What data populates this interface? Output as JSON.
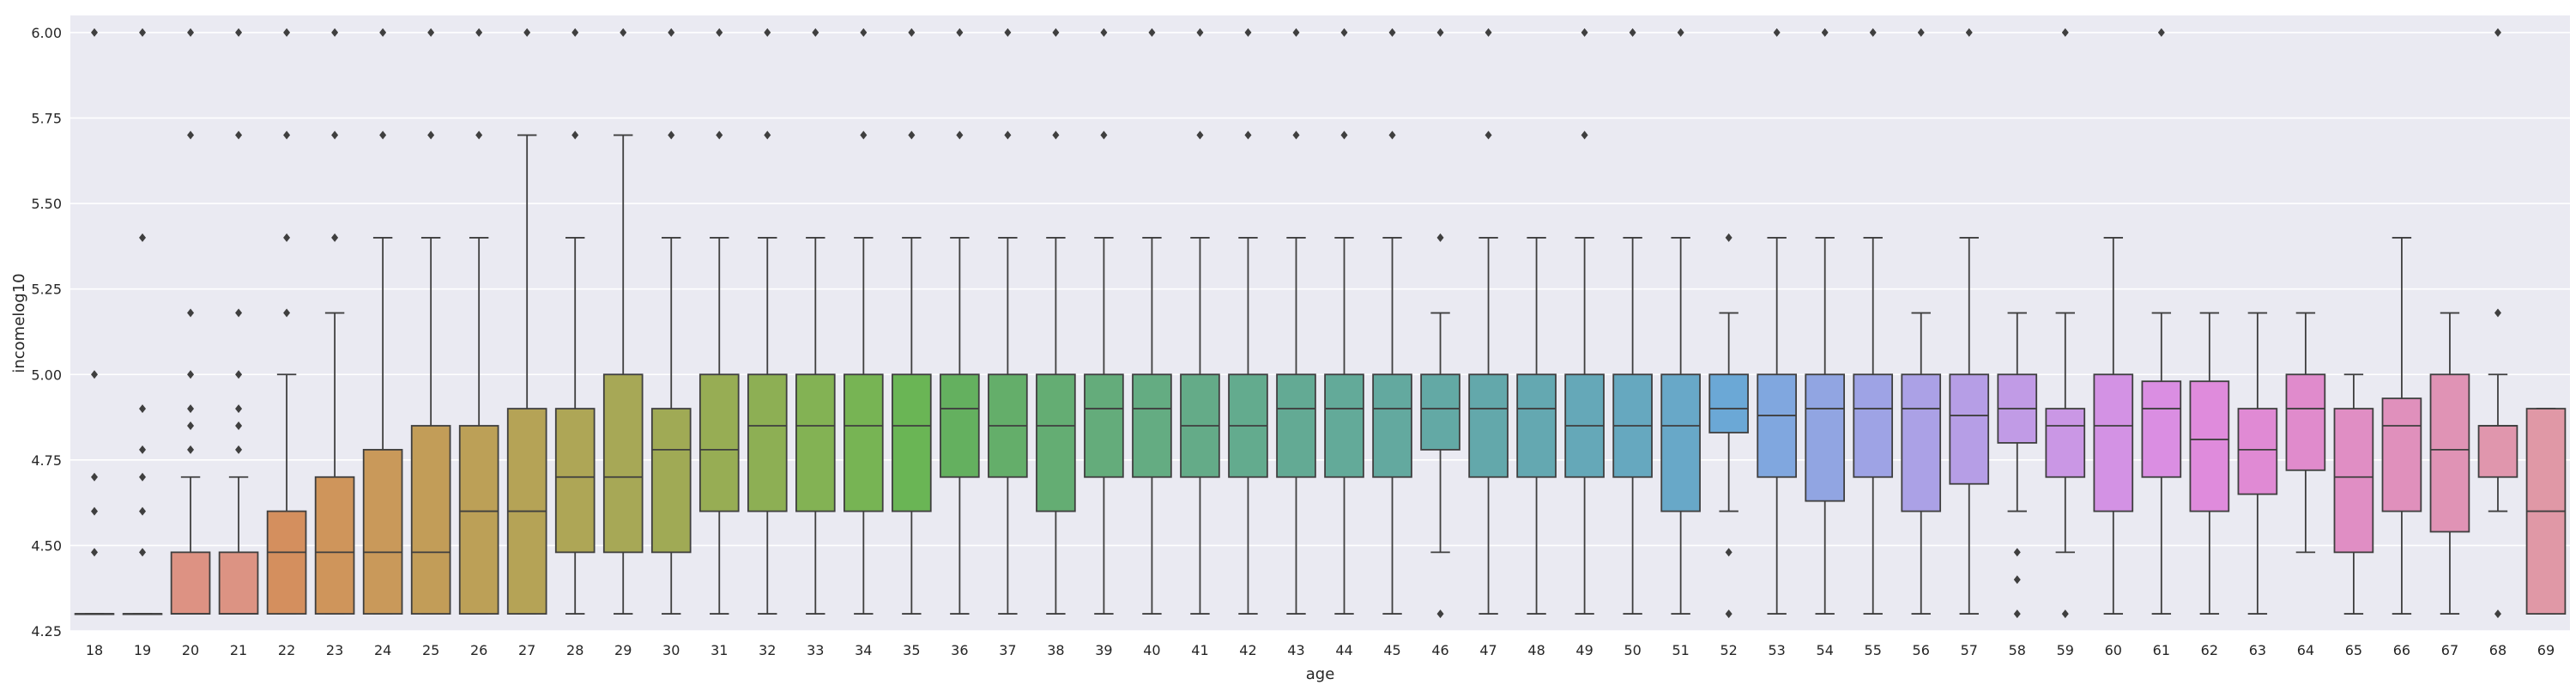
{
  "chart_data": {
    "type": "box",
    "xlabel": "age",
    "ylabel": "incomelog10",
    "ylim": [
      4.25,
      6.05
    ],
    "yticks": [
      "4.25",
      "4.50",
      "4.75",
      "5.00",
      "5.25",
      "5.50",
      "5.75",
      "6.00"
    ],
    "grid": true,
    "background_color": "#eaeaf2",
    "categories": [
      "18",
      "19",
      "20",
      "21",
      "22",
      "23",
      "24",
      "25",
      "26",
      "27",
      "28",
      "29",
      "30",
      "31",
      "32",
      "33",
      "34",
      "35",
      "36",
      "37",
      "38",
      "39",
      "40",
      "41",
      "42",
      "43",
      "44",
      "45",
      "46",
      "47",
      "48",
      "49",
      "50",
      "51",
      "52",
      "53",
      "54",
      "55",
      "56",
      "57",
      "58",
      "59",
      "60",
      "61",
      "62",
      "63",
      "64",
      "65",
      "66",
      "67",
      "68",
      "69"
    ],
    "boxes": [
      {
        "q1": 4.3,
        "median": 4.3,
        "q3": 4.3,
        "wlo": 4.3,
        "whi": 4.3,
        "fliers": [
          4.48,
          4.6,
          4.7,
          5.0,
          6.0
        ],
        "color": "#e8827a"
      },
      {
        "q1": 4.3,
        "median": 4.3,
        "q3": 4.3,
        "wlo": 4.3,
        "whi": 4.3,
        "fliers": [
          4.48,
          4.6,
          4.7,
          4.78,
          4.9,
          5.4,
          6.0
        ],
        "color": "#e2897a"
      },
      {
        "q1": 4.3,
        "median": 4.3,
        "q3": 4.48,
        "wlo": 4.3,
        "whi": 4.7,
        "fliers": [
          4.78,
          4.85,
          4.9,
          5.0,
          5.18,
          5.7,
          6.0
        ],
        "color": "#dd9283"
      },
      {
        "q1": 4.3,
        "median": 4.3,
        "q3": 4.48,
        "wlo": 4.3,
        "whi": 4.7,
        "fliers": [
          4.78,
          4.85,
          4.9,
          5.0,
          5.18,
          5.7,
          6.0
        ],
        "color": "#dc9383"
      },
      {
        "q1": 4.3,
        "median": 4.48,
        "q3": 4.6,
        "wlo": 4.3,
        "whi": 5.0,
        "fliers": [
          5.18,
          5.4,
          5.7,
          6.0
        ],
        "color": "#d48f5e"
      },
      {
        "q1": 4.3,
        "median": 4.48,
        "q3": 4.7,
        "wlo": 4.3,
        "whi": 5.18,
        "fliers": [
          5.4,
          5.7,
          6.0
        ],
        "color": "#cf955b"
      },
      {
        "q1": 4.3,
        "median": 4.48,
        "q3": 4.78,
        "wlo": 4.3,
        "whi": 5.4,
        "fliers": [
          5.7,
          6.0
        ],
        "color": "#c9995a"
      },
      {
        "q1": 4.3,
        "median": 4.48,
        "q3": 4.85,
        "wlo": 4.3,
        "whi": 5.4,
        "fliers": [
          5.7,
          6.0
        ],
        "color": "#c29d58"
      },
      {
        "q1": 4.3,
        "median": 4.6,
        "q3": 4.85,
        "wlo": 4.3,
        "whi": 5.4,
        "fliers": [
          5.7,
          6.0
        ],
        "color": "#bca057"
      },
      {
        "q1": 4.3,
        "median": 4.6,
        "q3": 4.9,
        "wlo": 4.3,
        "whi": 5.7,
        "fliers": [
          6.0
        ],
        "color": "#b5a356"
      },
      {
        "q1": 4.48,
        "median": 4.7,
        "q3": 4.9,
        "wlo": 4.3,
        "whi": 5.4,
        "fliers": [
          5.7,
          6.0
        ],
        "color": "#aea656"
      },
      {
        "q1": 4.48,
        "median": 4.7,
        "q3": 5.0,
        "wlo": 4.3,
        "whi": 5.7,
        "fliers": [
          6.0
        ],
        "color": "#a7a856"
      },
      {
        "q1": 4.48,
        "median": 4.78,
        "q3": 4.9,
        "wlo": 4.3,
        "whi": 5.4,
        "fliers": [
          5.7,
          6.0
        ],
        "color": "#a0aa55"
      },
      {
        "q1": 4.6,
        "median": 4.78,
        "q3": 5.0,
        "wlo": 4.3,
        "whi": 5.4,
        "fliers": [
          5.7,
          6.0
        ],
        "color": "#97ad54"
      },
      {
        "q1": 4.6,
        "median": 4.85,
        "q3": 5.0,
        "wlo": 4.3,
        "whi": 5.4,
        "fliers": [
          5.7,
          6.0
        ],
        "color": "#8daf54"
      },
      {
        "q1": 4.6,
        "median": 4.85,
        "q3": 5.0,
        "wlo": 4.3,
        "whi": 5.4,
        "fliers": [
          6.0
        ],
        "color": "#83b254"
      },
      {
        "q1": 4.6,
        "median": 4.85,
        "q3": 5.0,
        "wlo": 4.3,
        "whi": 5.4,
        "fliers": [
          5.7,
          6.0
        ],
        "color": "#77b454"
      },
      {
        "q1": 4.6,
        "median": 4.85,
        "q3": 5.0,
        "wlo": 4.3,
        "whi": 5.4,
        "fliers": [
          5.7,
          6.0
        ],
        "color": "#6ab555"
      },
      {
        "q1": 4.7,
        "median": 4.9,
        "q3": 5.0,
        "wlo": 4.3,
        "whi": 5.4,
        "fliers": [
          5.7,
          6.0
        ],
        "color": "#64b05f"
      },
      {
        "q1": 4.7,
        "median": 4.85,
        "q3": 5.0,
        "wlo": 4.3,
        "whi": 5.4,
        "fliers": [
          5.7,
          6.0
        ],
        "color": "#64ae6a"
      },
      {
        "q1": 4.6,
        "median": 4.85,
        "q3": 5.0,
        "wlo": 4.3,
        "whi": 5.4,
        "fliers": [
          5.7,
          6.0
        ],
        "color": "#64ad73"
      },
      {
        "q1": 4.7,
        "median": 4.9,
        "q3": 5.0,
        "wlo": 4.3,
        "whi": 5.4,
        "fliers": [
          5.7,
          6.0
        ],
        "color": "#64ac7b"
      },
      {
        "q1": 4.7,
        "median": 4.9,
        "q3": 5.0,
        "wlo": 4.3,
        "whi": 5.4,
        "fliers": [
          6.0
        ],
        "color": "#64ac82"
      },
      {
        "q1": 4.7,
        "median": 4.85,
        "q3": 5.0,
        "wlo": 4.3,
        "whi": 5.4,
        "fliers": [
          5.7,
          6.0
        ],
        "color": "#64ab88"
      },
      {
        "q1": 4.7,
        "median": 4.85,
        "q3": 5.0,
        "wlo": 4.3,
        "whi": 5.4,
        "fliers": [
          5.7,
          6.0
        ],
        "color": "#63ab8e"
      },
      {
        "q1": 4.7,
        "median": 4.9,
        "q3": 5.0,
        "wlo": 4.3,
        "whi": 5.4,
        "fliers": [
          5.7,
          6.0
        ],
        "color": "#63aa94"
      },
      {
        "q1": 4.7,
        "median": 4.9,
        "q3": 5.0,
        "wlo": 4.3,
        "whi": 5.4,
        "fliers": [
          5.7,
          6.0
        ],
        "color": "#63aa99"
      },
      {
        "q1": 4.7,
        "median": 4.9,
        "q3": 5.0,
        "wlo": 4.3,
        "whi": 5.4,
        "fliers": [
          5.7,
          6.0
        ],
        "color": "#63a99f"
      },
      {
        "q1": 4.78,
        "median": 4.9,
        "q3": 5.0,
        "wlo": 4.48,
        "whi": 5.18,
        "fliers": [
          4.3,
          5.4,
          6.0
        ],
        "color": "#63a9a5"
      },
      {
        "q1": 4.7,
        "median": 4.9,
        "q3": 5.0,
        "wlo": 4.3,
        "whi": 5.4,
        "fliers": [
          5.7,
          6.0
        ],
        "color": "#63a8ab"
      },
      {
        "q1": 4.7,
        "median": 4.9,
        "q3": 5.0,
        "wlo": 4.3,
        "whi": 5.4,
        "fliers": [],
        "color": "#64a8b1"
      },
      {
        "q1": 4.7,
        "median": 4.85,
        "q3": 5.0,
        "wlo": 4.3,
        "whi": 5.4,
        "fliers": [
          5.7,
          6.0
        ],
        "color": "#65a8b8"
      },
      {
        "q1": 4.7,
        "median": 4.85,
        "q3": 5.0,
        "wlo": 4.3,
        "whi": 5.4,
        "fliers": [
          6.0
        ],
        "color": "#66a8bf"
      },
      {
        "q1": 4.6,
        "median": 4.85,
        "q3": 5.0,
        "wlo": 4.3,
        "whi": 5.4,
        "fliers": [
          6.0
        ],
        "color": "#68a8c8"
      },
      {
        "q1": 4.83,
        "median": 4.9,
        "q3": 5.0,
        "wlo": 4.6,
        "whi": 5.18,
        "fliers": [
          4.3,
          4.48,
          5.4
        ],
        "color": "#6ba8d6"
      },
      {
        "q1": 4.7,
        "median": 4.88,
        "q3": 5.0,
        "wlo": 4.3,
        "whi": 5.4,
        "fliers": [
          6.0
        ],
        "color": "#80a7df"
      },
      {
        "q1": 4.63,
        "median": 4.9,
        "q3": 5.0,
        "wlo": 4.3,
        "whi": 5.4,
        "fliers": [
          6.0
        ],
        "color": "#91a5e2"
      },
      {
        "q1": 4.7,
        "median": 4.9,
        "q3": 5.0,
        "wlo": 4.3,
        "whi": 5.4,
        "fliers": [
          6.0
        ],
        "color": "#9ea3e5"
      },
      {
        "q1": 4.6,
        "median": 4.9,
        "q3": 5.0,
        "wlo": 4.3,
        "whi": 5.18,
        "fliers": [
          6.0
        ],
        "color": "#aba1e6"
      },
      {
        "q1": 4.68,
        "median": 4.88,
        "q3": 5.0,
        "wlo": 4.3,
        "whi": 5.4,
        "fliers": [
          6.0
        ],
        "color": "#b69ee6"
      },
      {
        "q1": 4.8,
        "median": 4.9,
        "q3": 5.0,
        "wlo": 4.6,
        "whi": 5.18,
        "fliers": [
          4.3,
          4.4,
          4.48
        ],
        "color": "#c19be6"
      },
      {
        "q1": 4.7,
        "median": 4.85,
        "q3": 4.9,
        "wlo": 4.48,
        "whi": 5.18,
        "fliers": [
          4.3,
          6.0
        ],
        "color": "#ca97e5"
      },
      {
        "q1": 4.6,
        "median": 4.85,
        "q3": 5.0,
        "wlo": 4.3,
        "whi": 5.4,
        "fliers": [],
        "color": "#d392e4"
      },
      {
        "q1": 4.7,
        "median": 4.9,
        "q3": 4.98,
        "wlo": 4.3,
        "whi": 5.18,
        "fliers": [
          6.0
        ],
        "color": "#da8ee2"
      },
      {
        "q1": 4.6,
        "median": 4.81,
        "q3": 4.98,
        "wlo": 4.3,
        "whi": 5.18,
        "fliers": [],
        "color": "#df8bdc"
      },
      {
        "q1": 4.65,
        "median": 4.78,
        "q3": 4.9,
        "wlo": 4.3,
        "whi": 5.18,
        "fliers": [],
        "color": "#e08ad4"
      },
      {
        "q1": 4.72,
        "median": 4.9,
        "q3": 5.0,
        "wlo": 4.48,
        "whi": 5.18,
        "fliers": [],
        "color": "#e08bcc"
      },
      {
        "q1": 4.48,
        "median": 4.7,
        "q3": 4.9,
        "wlo": 4.3,
        "whi": 5.0,
        "fliers": [],
        "color": "#e08ec4"
      },
      {
        "q1": 4.6,
        "median": 4.85,
        "q3": 4.93,
        "wlo": 4.3,
        "whi": 5.4,
        "fliers": [],
        "color": "#e090bc"
      },
      {
        "q1": 4.54,
        "median": 4.78,
        "q3": 5.0,
        "wlo": 4.3,
        "whi": 5.18,
        "fliers": [],
        "color": "#e093b5"
      },
      {
        "q1": 4.7,
        "median": 4.85,
        "q3": 4.85,
        "wlo": 4.6,
        "whi": 5.0,
        "fliers": [
          4.3,
          5.18,
          6.0
        ],
        "color": "#e096ad"
      },
      {
        "q1": 4.3,
        "median": 4.6,
        "q3": 4.9,
        "wlo": 4.3,
        "whi": 4.9,
        "fliers": [],
        "color": "#e098a6"
      }
    ]
  }
}
